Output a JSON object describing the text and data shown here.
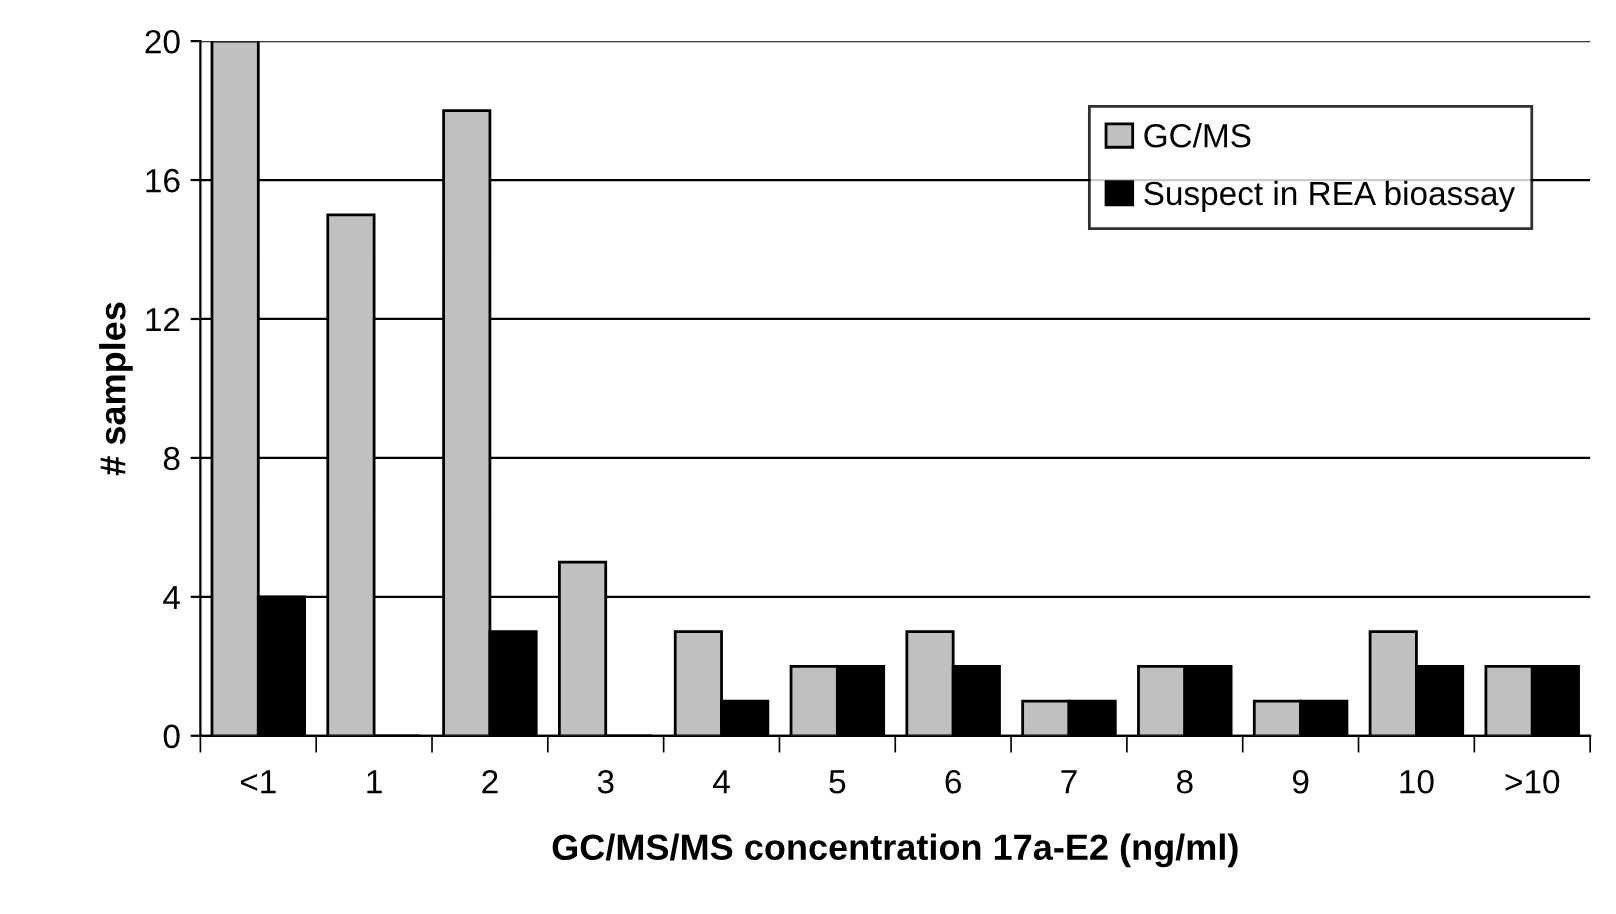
{
  "chart_data": {
    "type": "bar",
    "xlabel": "GC/MS/MS concentration 17a-E2 (ng/ml)",
    "ylabel": "# samples",
    "categories": [
      "<1",
      "1",
      "2",
      "3",
      "4",
      "5",
      "6",
      "7",
      "8",
      "9",
      "10",
      ">10"
    ],
    "series": [
      {
        "name": "GC/MS",
        "color": "#c0c0c0",
        "values": [
          20,
          15,
          18,
          5,
          3,
          2,
          3,
          1,
          2,
          1,
          3,
          2
        ]
      },
      {
        "name": "Suspect in REA bioassay",
        "color": "#000000",
        "values": [
          4,
          0,
          3,
          0,
          1,
          2,
          2,
          1,
          2,
          1,
          2,
          2
        ]
      }
    ],
    "ylim": [
      0,
      20
    ],
    "yticks": [
      0,
      4,
      8,
      12,
      16,
      20
    ],
    "grid": "y",
    "legend": "top right"
  }
}
